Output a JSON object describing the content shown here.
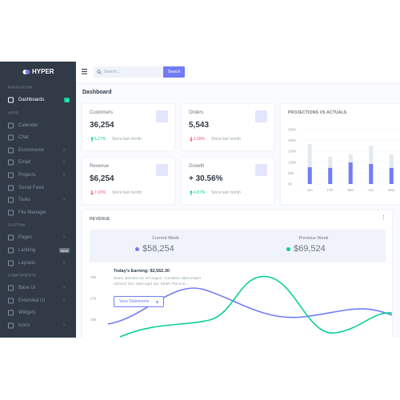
{
  "brand": "HYPER",
  "sidebar": [
    {
      "heading": "NAVIGATION",
      "items": [
        {
          "label": "Dashboards",
          "badge": "4",
          "active": true
        }
      ]
    },
    {
      "heading": "APPS",
      "items": [
        {
          "label": "Calendar"
        },
        {
          "label": "Chat"
        },
        {
          "label": "Ecommerce",
          "submenu": true
        },
        {
          "label": "Email",
          "submenu": true
        },
        {
          "label": "Projects",
          "submenu": true
        },
        {
          "label": "Social Feed"
        },
        {
          "label": "Tasks",
          "submenu": true
        },
        {
          "label": "File Manager"
        }
      ]
    },
    {
      "heading": "CUSTOM",
      "items": [
        {
          "label": "Pages",
          "submenu": true
        },
        {
          "label": "Landing",
          "badge": "New"
        },
        {
          "label": "Layouts",
          "submenu": true
        }
      ]
    },
    {
      "heading": "COMPONENTS",
      "items": [
        {
          "label": "Base UI",
          "submenu": true
        },
        {
          "label": "Extended UI",
          "submenu": true
        },
        {
          "label": "Widgets"
        },
        {
          "label": "Icons",
          "submenu": true
        }
      ]
    }
  ],
  "search": {
    "placeholder": "Search...",
    "button": "Search"
  },
  "page_title": "Dashboard",
  "stats": [
    {
      "label": "Customers",
      "value": "36,254",
      "change": "5.27%",
      "trend": "up",
      "note": "Since last month"
    },
    {
      "label": "Orders",
      "value": "5,543",
      "change": "1.08%",
      "trend": "down",
      "note": "Since last month"
    },
    {
      "label": "Revenue",
      "value": "$6,254",
      "change": "7.00%",
      "trend": "down",
      "note": "Since last month"
    },
    {
      "label": "Growth",
      "value": "+ 30.56%",
      "change": "4.87%",
      "trend": "up",
      "note": "Since last month"
    }
  ],
  "projections": {
    "title": "PROJECTIONS VS ACTUALS",
    "categories": [
      "Jan",
      "Feb",
      "Mar",
      "Apr",
      "May"
    ],
    "ylim": [
      0,
      250000
    ],
    "yticks": [
      {
        "value": 0,
        "label": "0k"
      },
      {
        "value": 50000,
        "label": "50k"
      },
      {
        "value": 100000,
        "label": "100k"
      },
      {
        "value": 150000,
        "label": "150k"
      },
      {
        "value": 200000,
        "label": "200k"
      },
      {
        "value": 250000,
        "label": "250k"
      }
    ],
    "projected": {
      "color": "#e3eaef",
      "values": [
        184000,
        125000,
        136000,
        176000,
        136000
      ]
    },
    "actual": {
      "color": "#727cf5",
      "values": [
        77000,
        74000,
        99000,
        92000,
        74000
      ]
    }
  },
  "revenue": {
    "title": "REVENUE",
    "current_label": "Current Week",
    "current_value": "$58,254",
    "previous_label": "Previous Week",
    "previous_value": "$69,524",
    "earning_title": "Today's Earning: $2,562.30",
    "earning_text": "Etiam ultricies nisi vel augue. Curabitur ullamcorper ultricies nisi. Nam eget dui. Etiam rhoncus...",
    "button": "View Statements",
    "yticks": [
      "36k",
      "27k",
      "18k"
    ]
  }
}
